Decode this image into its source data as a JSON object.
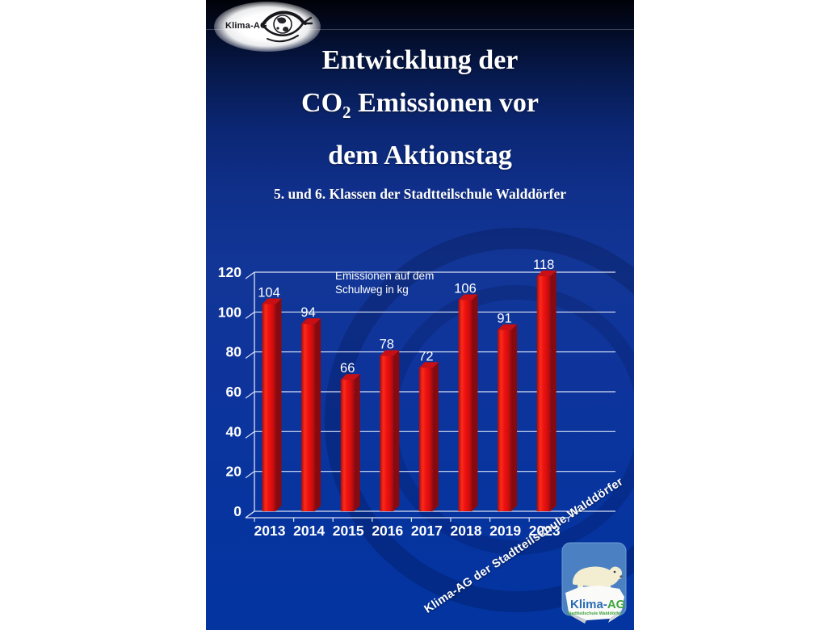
{
  "slide": {
    "title_line1": "Entwicklung der",
    "title_line2_pre": "CO",
    "title_line2_sub": "2",
    "title_line2_post": " Emissionen vor",
    "title_line3": "dem Aktionstag",
    "subtitle": "5. und 6. Klassen der Stadtteilschule Walddörfer"
  },
  "logo_top": {
    "text": "Klima-AG",
    "icon": "eye-with-globe"
  },
  "chart_data": {
    "type": "bar",
    "style": "3d-column",
    "categories": [
      "2013",
      "2014",
      "2015",
      "2016",
      "2017",
      "2018",
      "2019",
      "2023"
    ],
    "values": [
      104,
      94,
      66,
      78,
      72,
      106,
      91,
      118
    ],
    "series_label": "Emissionen auf dem Schulweg in kg",
    "legend_lines": [
      "Emissionen auf dem",
      "Schulweg in kg"
    ],
    "xlabel": "",
    "ylabel": "",
    "ylim": [
      0,
      120
    ],
    "yticks": [
      0,
      20,
      40,
      60,
      80,
      100,
      120
    ],
    "grid": true,
    "legend_position": "inside-top-left",
    "bar_color": "#ee1110",
    "bar_side_color": "#870a10",
    "bar_top_color": "#c90f13",
    "bar_gradient": [
      "#a80c0c",
      "#fb2b1a",
      "#ee1110",
      "#d40e0e",
      "#9c0b0e"
    ],
    "gridline_color": "#d9e1f4",
    "label_color": "#ffffff"
  },
  "watermark": {
    "text": "Klima-AG der Stadtteilschule Walddörfer"
  },
  "badge": {
    "title_blue": "Klima-",
    "title_green": "AG",
    "subtitle": "Stadtteilschule Walddörfer",
    "bg_color": "#4b81c3",
    "blue_text_color": "#2a6cb4",
    "green_text_color": "#3fa53f"
  },
  "colors": {
    "slide_top": "#010208",
    "slide_bottom": "#0334a0",
    "accent_red": "#ee1110",
    "text_white": "#ffffff"
  }
}
